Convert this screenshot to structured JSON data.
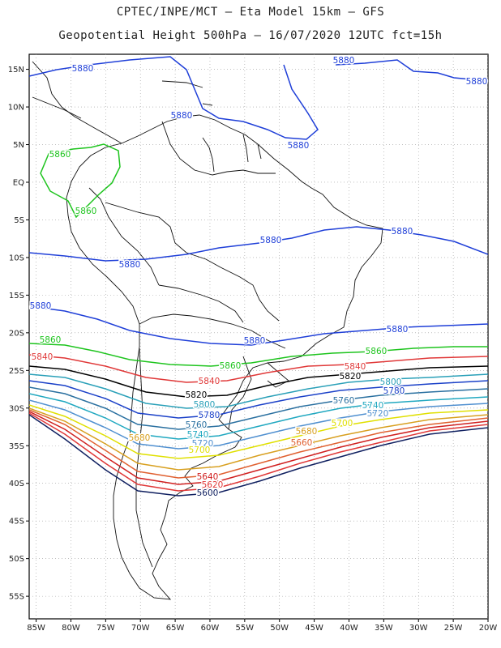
{
  "title_line1": "CPTEC/INPE/MCT –  Eta Model 15km – GFS",
  "title_line2": "Geopotential Height 500hPa – 16/07/2020 12UTC fct=15h",
  "map": {
    "lat_range": [
      -58,
      17
    ],
    "lon_range": [
      -86,
      -20
    ],
    "lat_ticks": [
      "15N",
      "10N",
      "5N",
      "EQ",
      "5S",
      "10S",
      "15S",
      "20S",
      "25S",
      "30S",
      "35S",
      "40S",
      "45S",
      "50S",
      "55S"
    ],
    "lon_ticks": [
      "85W",
      "80W",
      "75W",
      "70W",
      "65W",
      "60W",
      "55W",
      "50W",
      "45W",
      "40W",
      "35W",
      "30W",
      "25W",
      "20W"
    ]
  },
  "contours": [
    {
      "value": "5880",
      "color": "#1f3fd8"
    },
    {
      "value": "5860",
      "color": "#1dc41d"
    },
    {
      "value": "5840",
      "color": "#e03838"
    },
    {
      "value": "5820",
      "color": "#000000"
    },
    {
      "value": "5800",
      "color": "#2aa0b8"
    },
    {
      "value": "5780",
      "color": "#1a40c8"
    },
    {
      "value": "5760",
      "color": "#2a70a0"
    },
    {
      "value": "5740",
      "color": "#20a8c0"
    },
    {
      "value": "5720",
      "color": "#5090d0"
    },
    {
      "value": "5700",
      "color": "#e0e000"
    },
    {
      "value": "5680",
      "color": "#d8a020"
    },
    {
      "value": "5660",
      "color": "#e06030"
    },
    {
      "value": "5640",
      "color": "#d02020"
    },
    {
      "value": "5620",
      "color": "#e03838"
    },
    {
      "value": "5600",
      "color": "#102060"
    }
  ]
}
